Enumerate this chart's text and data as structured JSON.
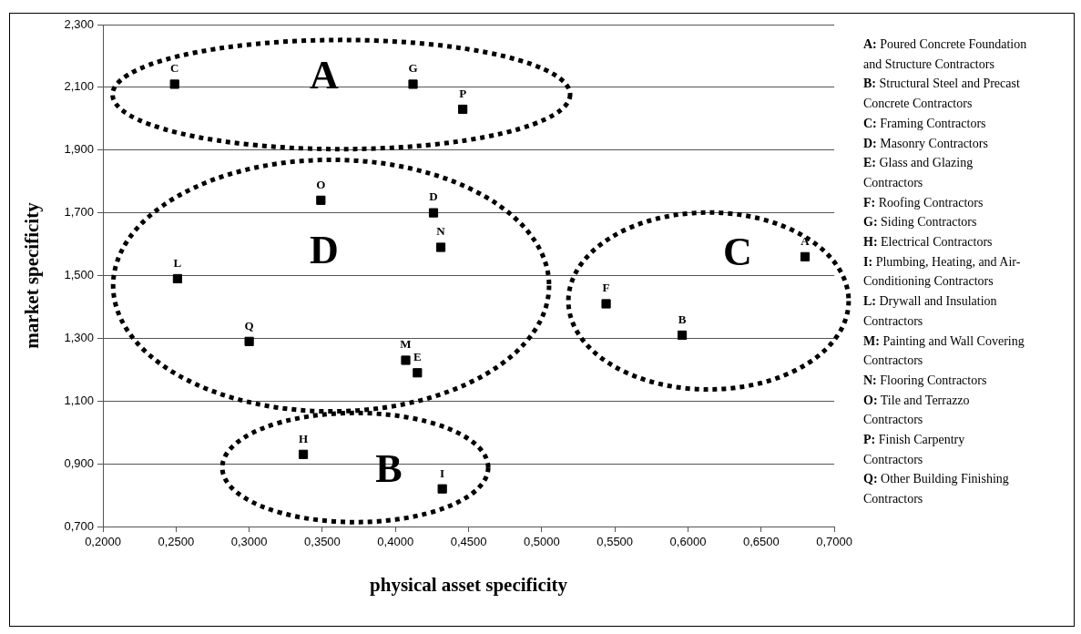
{
  "chart_data": {
    "type": "scatter",
    "xlabel": "physical asset specificity",
    "ylabel": "market specificity",
    "series": [
      {
        "color": "#000000",
        "x": [
          0.68,
          0.596,
          0.249,
          0.426,
          0.415,
          0.544,
          0.412,
          0.337,
          0.432,
          0.251,
          0.407,
          0.431,
          0.349,
          0.446,
          0.3
        ],
        "values": [
          1.56,
          1.31,
          2.11,
          1.7,
          1.19,
          1.41,
          2.11,
          0.93,
          0.82,
          1.49,
          1.23,
          1.59,
          1.74,
          2.03,
          1.29
        ],
        "value_labels": [
          "A",
          "B",
          "C",
          "D",
          "E",
          "F",
          "G",
          "H",
          "I",
          "L",
          "M",
          "N",
          "O",
          "P",
          "Q"
        ]
      }
    ],
    "marker": "square",
    "grid": "y",
    "legend": false,
    "xlim": [
      0.2,
      0.7
    ],
    "xticks": [
      {
        "value": 0.2,
        "label": "0,2000"
      },
      {
        "value": 0.25,
        "label": "0,2500"
      },
      {
        "value": 0.3,
        "label": "0,3000"
      },
      {
        "value": 0.35,
        "label": "0,3500"
      },
      {
        "value": 0.4,
        "label": "0,4000"
      },
      {
        "value": 0.45,
        "label": "0,4500"
      },
      {
        "value": 0.5,
        "label": "0,5000"
      },
      {
        "value": 0.55,
        "label": "0,5500"
      },
      {
        "value": 0.6,
        "label": "0,6000"
      },
      {
        "value": 0.65,
        "label": "0,6500"
      },
      {
        "value": 0.7,
        "label": "0,7000"
      }
    ],
    "ylim": [
      0.7,
      2.3
    ],
    "yticks": [
      {
        "value": 0.7,
        "label": "0,700"
      },
      {
        "value": 0.9,
        "label": "0,900"
      },
      {
        "value": 1.1,
        "label": "1,100"
      },
      {
        "value": 1.3,
        "label": "1,300"
      },
      {
        "value": 1.5,
        "label": "1,500"
      },
      {
        "value": 1.7,
        "label": "1,700"
      },
      {
        "value": 1.9,
        "label": "1,900"
      },
      {
        "value": 2.1,
        "label": "2,100"
      },
      {
        "value": 2.3,
        "label": "2,300"
      }
    ],
    "annotations": [
      "A",
      "D",
      "B",
      "C",
      "A: Poured Concrete Foundation and Structure Contractors",
      "B: Structural Steel and Precast Concrete Contractors",
      "C: Framing Contractors",
      "D: Masonry Contractors",
      "E: Glass and Glazing Contractors",
      "F: Roofing Contractors",
      "G: Siding Contractors",
      "H: Electrical Contractors",
      "I: Plumbing, Heating, and Air-Conditioning Contractors",
      "L: Drywall and Insulation Contractors",
      "M: Painting and Wall Covering Contractors",
      "N: Flooring Contractors",
      "O: Tile and Terrazzo Contractors",
      "P: Finish Carpentry Contractors",
      "Q: Other Building Finishing Contractors"
    ]
  }
}
